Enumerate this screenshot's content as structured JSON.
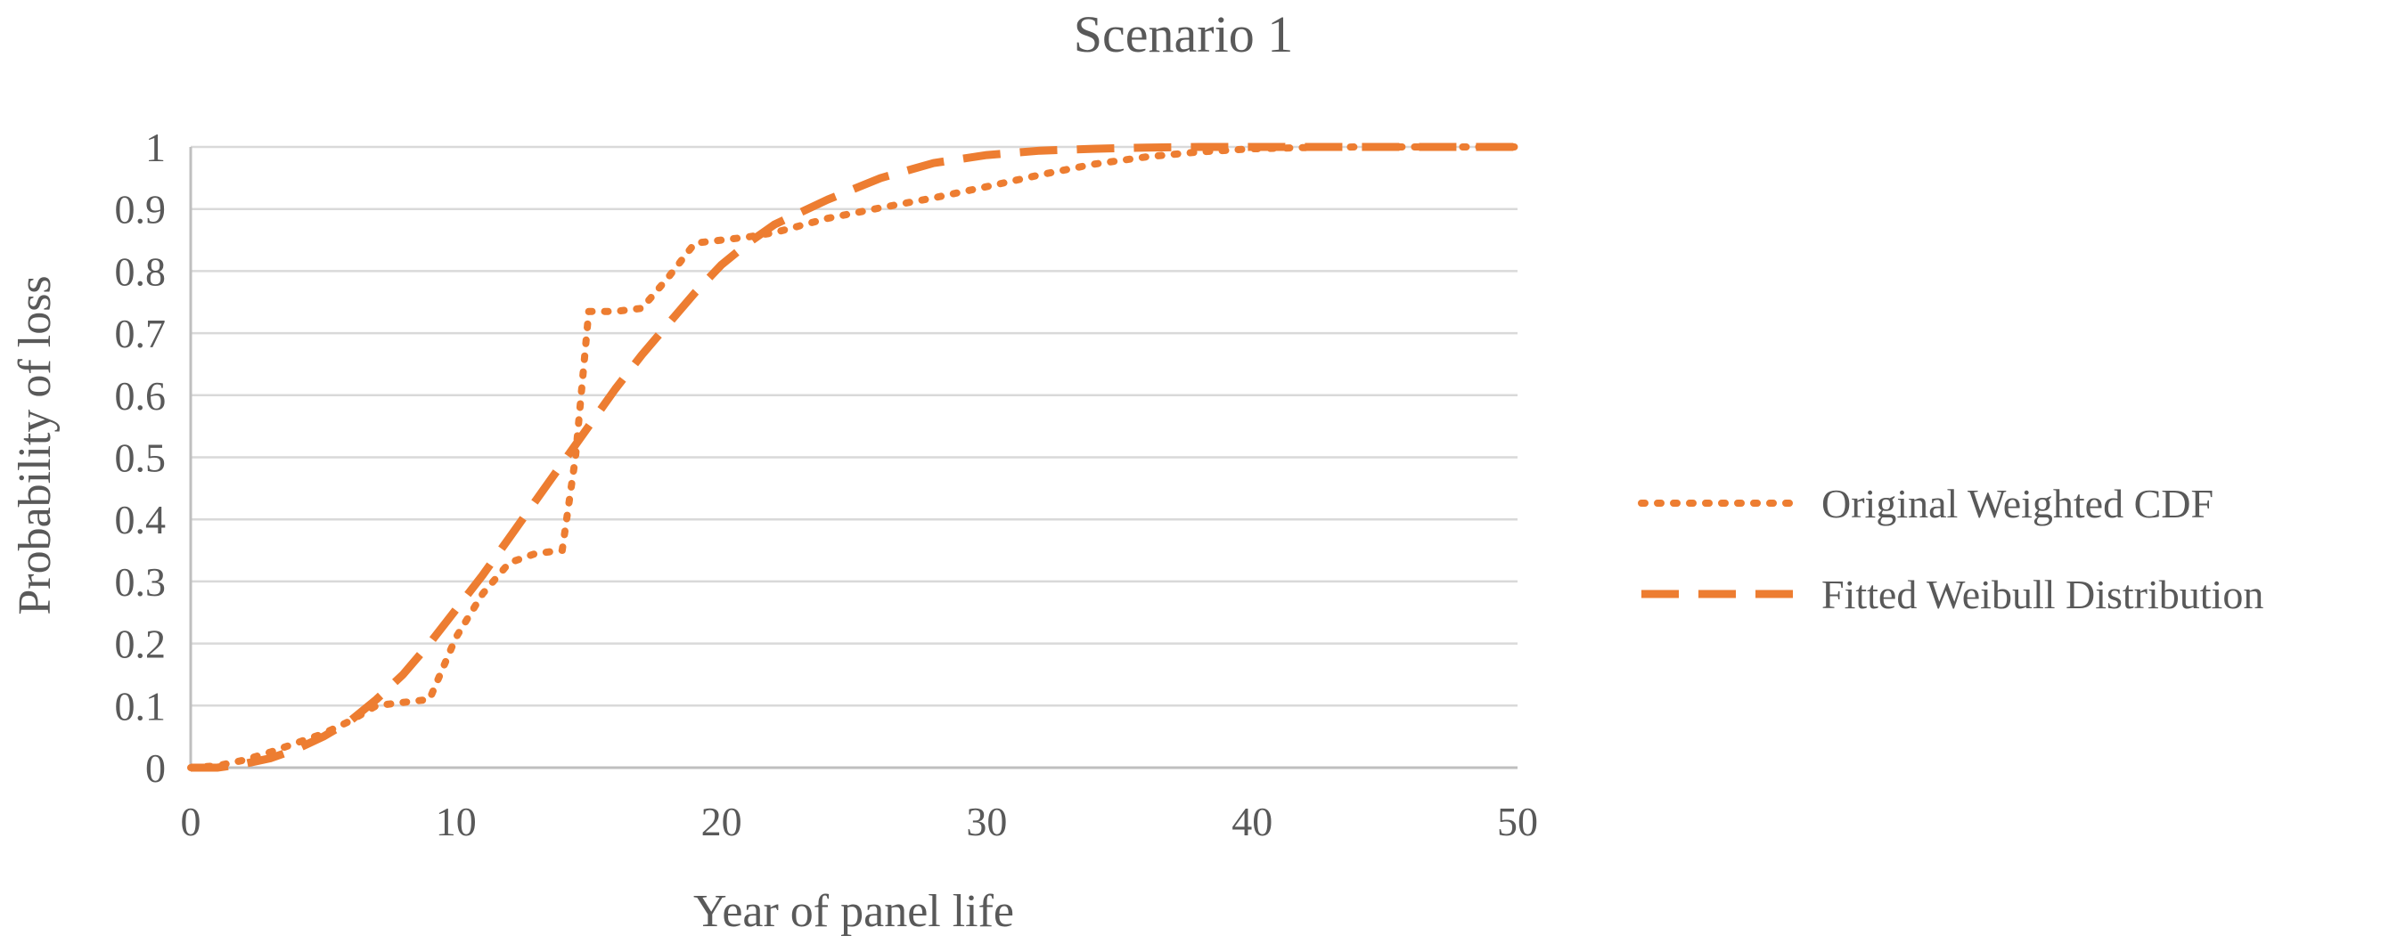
{
  "chart_data": {
    "type": "line",
    "title": "Scenario 1",
    "xlabel": "Year of panel life",
    "ylabel": "Probability of loss",
    "xlim": [
      0,
      50
    ],
    "ylim": [
      0,
      1
    ],
    "x_ticks": [
      "0",
      "10",
      "20",
      "30",
      "40",
      "50"
    ],
    "y_ticks": [
      "0",
      "0.1",
      "0.2",
      "0.3",
      "0.4",
      "0.5",
      "0.6",
      "0.7",
      "0.8",
      "0.9",
      "1"
    ],
    "grid": true,
    "legend_position": "right",
    "colors": {
      "series": "#ED7D31",
      "grid": "#d9d9d9",
      "axis": "#bfbfbf",
      "text": "#595959"
    },
    "series": [
      {
        "name": "Original Weighted CDF",
        "style": "dotted",
        "x": [
          0,
          1,
          2,
          3,
          4,
          5,
          6,
          7,
          8,
          9,
          10,
          11,
          12,
          13,
          14,
          14.5,
          15,
          16,
          17,
          18,
          19,
          20,
          21,
          22,
          24,
          26,
          28,
          30,
          32,
          34,
          36,
          38,
          40,
          42,
          44,
          46,
          48,
          50
        ],
        "y": [
          0,
          0.003,
          0.012,
          0.025,
          0.04,
          0.055,
          0.075,
          0.1,
          0.105,
          0.11,
          0.21,
          0.28,
          0.33,
          0.345,
          0.35,
          0.5,
          0.735,
          0.735,
          0.74,
          0.79,
          0.845,
          0.85,
          0.855,
          0.862,
          0.885,
          0.902,
          0.918,
          0.936,
          0.955,
          0.972,
          0.984,
          0.992,
          0.997,
          0.999,
          1.0,
          1.0,
          1.0,
          1.0
        ]
      },
      {
        "name": "Fitted Weibull Distribution",
        "style": "dashed",
        "x": [
          0,
          1,
          2,
          3,
          4,
          5,
          6,
          7,
          8,
          9,
          10,
          11,
          12,
          13,
          14,
          15,
          16,
          17,
          18,
          19,
          20,
          21,
          22,
          24,
          26,
          28,
          30,
          32,
          34,
          36,
          38,
          40,
          42,
          44,
          46,
          48,
          50
        ],
        "y": [
          0,
          0.0,
          0.006,
          0.015,
          0.03,
          0.05,
          0.075,
          0.11,
          0.15,
          0.2,
          0.255,
          0.31,
          0.37,
          0.43,
          0.49,
          0.55,
          0.61,
          0.665,
          0.715,
          0.765,
          0.81,
          0.845,
          0.875,
          0.915,
          0.95,
          0.974,
          0.987,
          0.994,
          0.997,
          0.999,
          1.0,
          1.0,
          1.0,
          1.0,
          1.0,
          1.0,
          1.0
        ]
      }
    ]
  }
}
